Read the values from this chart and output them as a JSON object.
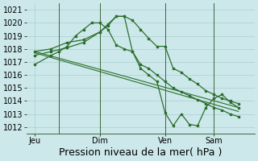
{
  "bg_color": "#cce8ea",
  "grid_color": "#aacfcf",
  "line_color": "#2d6e2d",
  "xlabel": "Pression niveau de la mer( hPa )",
  "ylim": [
    1011.5,
    1021.5
  ],
  "yticks": [
    1012,
    1013,
    1014,
    1015,
    1016,
    1017,
    1018,
    1019,
    1020,
    1021
  ],
  "xtick_labels": [
    "Jeu",
    "Dim",
    "Ven",
    "Sam"
  ],
  "xtick_positions": [
    0,
    8,
    16,
    22
  ],
  "xlim": [
    -1,
    27
  ],
  "series1_x": [
    0,
    2,
    4,
    6,
    8,
    9,
    10,
    11,
    12,
    13,
    14,
    15,
    16,
    17,
    18,
    19,
    20,
    21,
    22,
    23,
    24,
    25
  ],
  "series1_y": [
    1017.5,
    1017.8,
    1018.1,
    1018.5,
    1019.3,
    1019.8,
    1020.5,
    1020.5,
    1020.2,
    1019.5,
    1018.8,
    1018.2,
    1018.2,
    1016.5,
    1016.2,
    1015.7,
    1015.3,
    1014.8,
    1014.5,
    1014.2,
    1014.0,
    1013.8
  ],
  "series2_x": [
    0,
    2,
    4,
    6,
    8,
    9,
    10,
    11,
    12,
    13,
    14,
    15,
    16,
    17,
    18,
    19,
    20,
    21,
    22,
    23,
    24,
    25
  ],
  "series2_y": [
    1017.8,
    1018.0,
    1018.5,
    1018.7,
    1019.3,
    1019.9,
    1020.5,
    1020.5,
    1017.8,
    1016.5,
    1016.0,
    1015.5,
    1013.1,
    1012.1,
    1013.0,
    1012.2,
    1012.1,
    1013.5,
    1014.2,
    1014.5,
    1013.9,
    1013.5
  ],
  "series3_x": [
    0,
    2,
    3,
    4,
    5,
    6,
    7,
    8,
    9,
    10,
    11,
    12,
    13,
    14,
    15,
    16,
    17,
    18,
    19,
    20,
    21,
    22,
    23,
    24,
    25
  ],
  "series3_y": [
    1016.8,
    1017.5,
    1017.8,
    1018.2,
    1019.0,
    1019.5,
    1020.0,
    1020.0,
    1019.5,
    1018.3,
    1018.0,
    1017.8,
    1016.8,
    1016.5,
    1016.0,
    1015.5,
    1015.0,
    1014.7,
    1014.4,
    1014.1,
    1013.8,
    1013.5,
    1013.3,
    1013.0,
    1012.8
  ],
  "trend1_x": [
    0,
    25
  ],
  "trend1_y": [
    1017.8,
    1013.5
  ],
  "trend2_x": [
    0,
    25
  ],
  "trend2_y": [
    1017.7,
    1013.2
  ],
  "vline_positions": [
    3,
    8,
    16,
    22
  ],
  "title_fontsize": 9,
  "tick_fontsize": 7
}
